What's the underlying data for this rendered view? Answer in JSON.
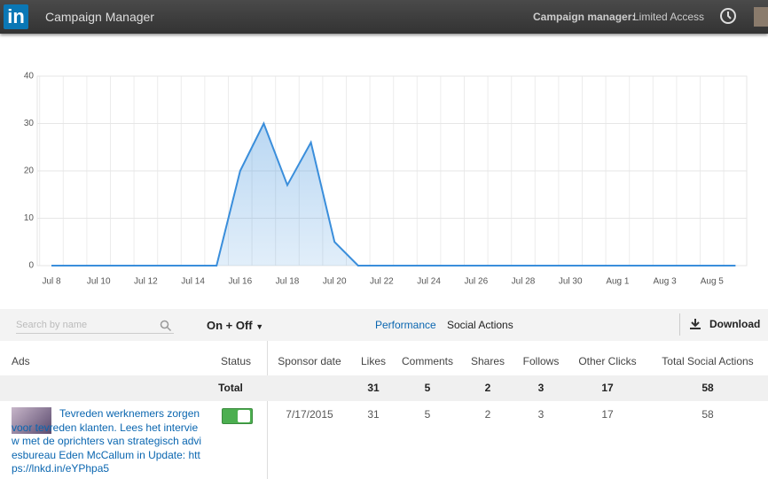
{
  "header": {
    "logo": "in",
    "app_name": "Campaign Manager",
    "access_label": "Campaign manager:",
    "access_value": "Limited Access"
  },
  "chart_data": {
    "type": "area",
    "categories": [
      "Jul 8",
      null,
      "Jul 10",
      null,
      "Jul 12",
      null,
      "Jul 14",
      null,
      "Jul 16",
      null,
      "Jul 18",
      null,
      "Jul 20",
      null,
      "Jul 22",
      null,
      "Jul 24",
      null,
      "Jul 26",
      null,
      "Jul 28",
      null,
      "Jul 30",
      null,
      "Aug 1",
      null,
      "Aug 3",
      null,
      "Aug 5",
      null
    ],
    "values": [
      0,
      0,
      0,
      0,
      0,
      0,
      0,
      0,
      20,
      30,
      17,
      26,
      5,
      0,
      0,
      0,
      0,
      0,
      0,
      0,
      0,
      0,
      0,
      0,
      0,
      0,
      0,
      0,
      0,
      0
    ],
    "color": "#3a8edb",
    "ylim": [
      0,
      40
    ],
    "yticks": [
      0,
      10,
      20,
      30,
      40
    ],
    "grid": true
  },
  "toolbar": {
    "search_placeholder": "Search by name",
    "filter": "On + Off",
    "tabs": [
      "Performance",
      "Social Actions"
    ],
    "download": "Download"
  },
  "table": {
    "columns": [
      "Ads",
      "Status",
      "Sponsor date",
      "Likes",
      "Comments",
      "Shares",
      "Follows",
      "Other Clicks",
      "Total Social Actions"
    ],
    "total": [
      "Total",
      "31",
      "5",
      "2",
      "3",
      "17",
      "58"
    ],
    "rows": [
      [
        "Tevreden werknemers zorgen voor tevreden klanten. Lees het interview met de oprichters van strategisch adviesbureau Eden McCallum in Update: https://lnkd.in/eYPhpa5",
        "7/17/2015",
        "31",
        "5",
        "2",
        "3",
        "17",
        "58"
      ]
    ]
  }
}
